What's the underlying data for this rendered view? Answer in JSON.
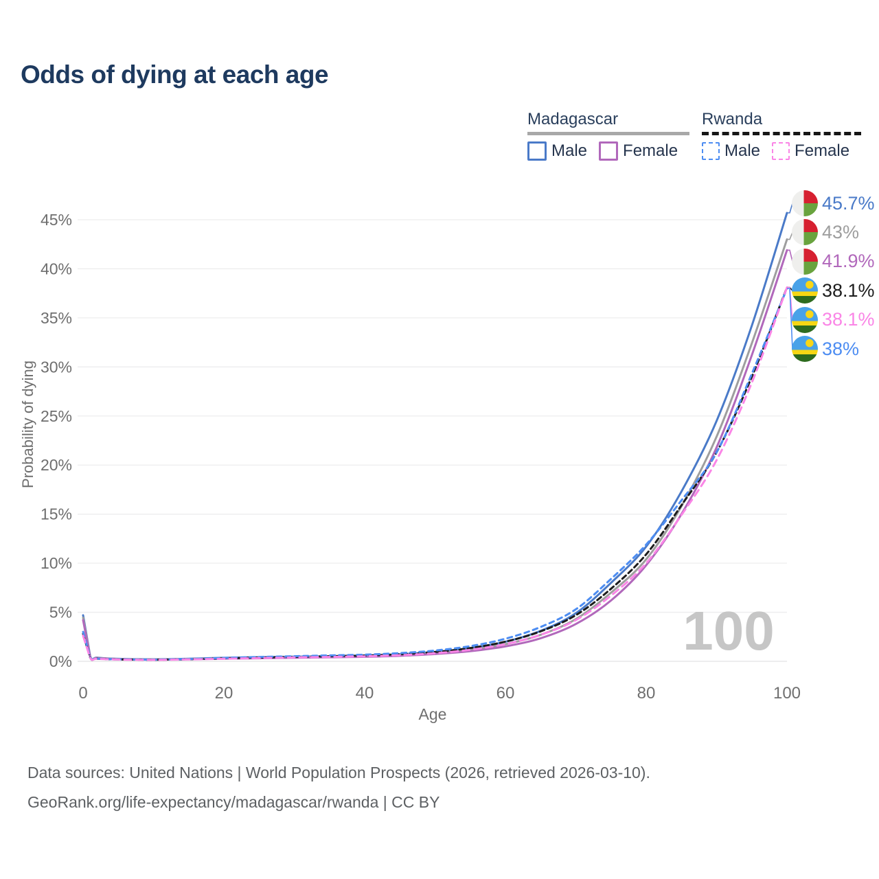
{
  "title": "Odds of dying at each age",
  "legend": {
    "groups": [
      {
        "label": "Madagascar",
        "underline_style": "solid",
        "underline_color": "#a8a8a8",
        "items": [
          {
            "label": "Male",
            "color": "#4a7ac8",
            "dashed": false
          },
          {
            "label": "Female",
            "color": "#b168bb",
            "dashed": false
          }
        ]
      },
      {
        "label": "Rwanda",
        "underline_style": "dashed",
        "underline_color": "#161616",
        "items": [
          {
            "label": "Male",
            "color": "#4d8df2",
            "dashed": true
          },
          {
            "label": "Female",
            "color": "#fa85e6",
            "dashed": true
          }
        ]
      }
    ]
  },
  "chart_data": {
    "type": "line",
    "title": "Odds of dying at each age",
    "xlabel": "Age",
    "ylabel": "Probability of dying",
    "xlim": [
      0,
      100
    ],
    "ylim_pct": [
      0,
      47
    ],
    "x_ticks": [
      0,
      20,
      40,
      60,
      80,
      100
    ],
    "y_ticks_pct": [
      0,
      5,
      10,
      15,
      20,
      25,
      30,
      35,
      40,
      45
    ],
    "grid": "horizontal",
    "watermark": "100",
    "ages": [
      0,
      1,
      2,
      5,
      10,
      15,
      20,
      25,
      30,
      35,
      40,
      45,
      50,
      55,
      60,
      65,
      70,
      75,
      80,
      85,
      90,
      95,
      100
    ],
    "series": [
      {
        "name": "Madagascar Male",
        "country": "madagascar",
        "sex": "male",
        "color": "#4a7ac8",
        "dashed": false,
        "end_label": "45.7%",
        "values": [
          4.7,
          0.55,
          0.38,
          0.25,
          0.21,
          0.26,
          0.36,
          0.42,
          0.47,
          0.52,
          0.58,
          0.72,
          0.95,
          1.35,
          2.0,
          3.1,
          4.9,
          8.0,
          11.7,
          17.3,
          24.5,
          34.2,
          45.7
        ]
      },
      {
        "name": "Madagascar Both sexes",
        "country": "madagascar",
        "sex": "both",
        "color": "#9e9e9e",
        "dashed": false,
        "end_label": "43%",
        "values": [
          4.45,
          0.5,
          0.35,
          0.23,
          0.19,
          0.23,
          0.32,
          0.37,
          0.42,
          0.47,
          0.52,
          0.64,
          0.84,
          1.18,
          1.75,
          2.7,
          4.3,
          7.0,
          10.4,
          15.8,
          22.9,
          32.4,
          43.0
        ]
      },
      {
        "name": "Madagascar Female",
        "country": "madagascar",
        "sex": "female",
        "color": "#b168bb",
        "dashed": false,
        "end_label": "41.9%",
        "values": [
          4.2,
          0.45,
          0.32,
          0.21,
          0.17,
          0.2,
          0.27,
          0.31,
          0.36,
          0.41,
          0.46,
          0.56,
          0.74,
          1.03,
          1.52,
          2.35,
          3.8,
          6.2,
          9.8,
          15.0,
          21.8,
          31.2,
          41.9
        ]
      },
      {
        "name": "Rwanda Both sexes",
        "country": "rwanda",
        "sex": "both",
        "color": "#1c1c1c",
        "dashed": true,
        "dash": "7 5",
        "end_label": "38.1%",
        "values": [
          2.8,
          0.38,
          0.27,
          0.19,
          0.16,
          0.21,
          0.3,
          0.38,
          0.45,
          0.52,
          0.59,
          0.72,
          0.95,
          1.35,
          2.0,
          3.05,
          4.7,
          7.4,
          10.9,
          15.9,
          21.3,
          29.0,
          38.1
        ]
      },
      {
        "name": "Rwanda Female",
        "country": "rwanda",
        "sex": "female",
        "color": "#fa85e6",
        "dashed": true,
        "dash": "10 7",
        "end_label": "38.1%",
        "values": [
          2.6,
          0.35,
          0.25,
          0.18,
          0.15,
          0.19,
          0.26,
          0.33,
          0.39,
          0.45,
          0.51,
          0.62,
          0.82,
          1.17,
          1.75,
          2.7,
          4.2,
          6.7,
          10.0,
          14.9,
          20.5,
          28.4,
          38.1
        ]
      },
      {
        "name": "Rwanda Male",
        "country": "rwanda",
        "sex": "male",
        "color": "#4d8df2",
        "dashed": true,
        "dash": "7 6",
        "end_label": "38%",
        "values": [
          3.0,
          0.4,
          0.28,
          0.2,
          0.17,
          0.23,
          0.34,
          0.44,
          0.52,
          0.6,
          0.68,
          0.84,
          1.1,
          1.55,
          2.3,
          3.5,
          5.3,
          8.4,
          11.9,
          16.4,
          21.3,
          29.3,
          38.0
        ]
      }
    ]
  },
  "footer": {
    "line1": "Data sources: United Nations | World Population Prospects (2026, retrieved 2026-03-10).",
    "line2": "GeoRank.org/life-expectancy/madagascar/rwanda | CC BY"
  }
}
